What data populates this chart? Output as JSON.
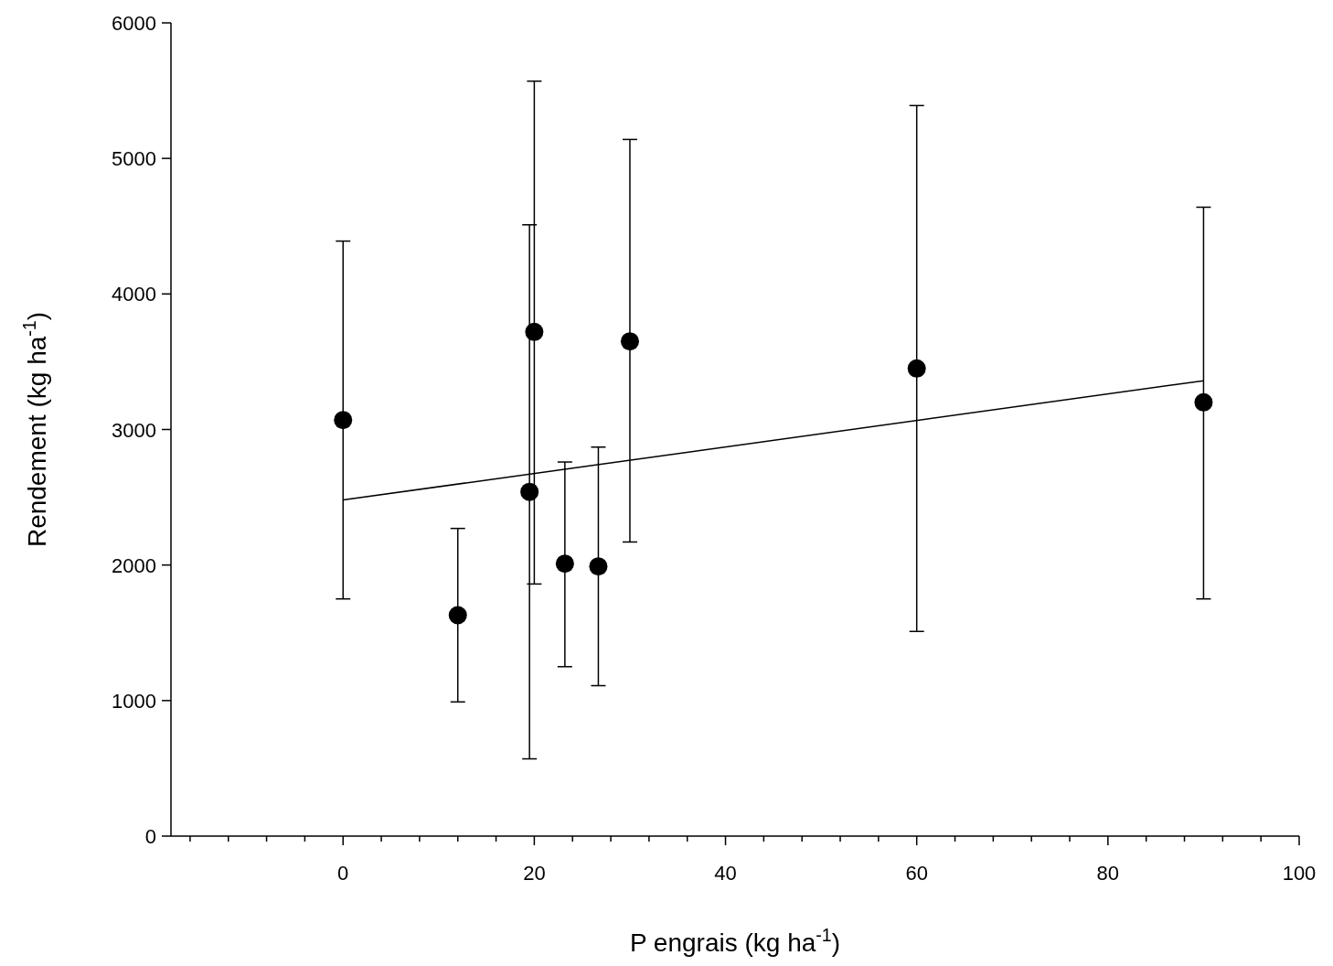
{
  "chart_data": {
    "type": "scatter",
    "xlabel": "P engrais (kg ha$^{-1}$)",
    "ylabel": "Rendement (kg ha$^{-1}$)",
    "xlim": [
      -18,
      100
    ],
    "ylim": [
      0,
      6000
    ],
    "xticks": [
      {
        "value": -16,
        "label": null
      },
      {
        "value": -12,
        "label": null
      },
      {
        "value": -8,
        "label": null
      },
      {
        "value": -4,
        "label": null
      },
      0,
      {
        "value": 4,
        "label": null
      },
      {
        "value": 8,
        "label": null
      },
      {
        "value": 12,
        "label": null
      },
      {
        "value": 16,
        "label": null
      },
      20,
      {
        "value": 24,
        "label": null
      },
      {
        "value": 28,
        "label": null
      },
      {
        "value": 32,
        "label": null
      },
      {
        "value": 36,
        "label": null
      },
      40,
      {
        "value": 44,
        "label": null
      },
      {
        "value": 48,
        "label": null
      },
      {
        "value": 52,
        "label": null
      },
      {
        "value": 56,
        "label": null
      },
      60,
      {
        "value": 64,
        "label": null
      },
      {
        "value": 68,
        "label": null
      },
      {
        "value": 72,
        "label": null
      },
      {
        "value": 76,
        "label": null
      },
      80,
      {
        "value": 84,
        "label": null
      },
      {
        "value": 88,
        "label": null
      },
      {
        "value": 92,
        "label": null
      },
      {
        "value": 96,
        "label": null
      },
      100
    ],
    "yticks": [
      0,
      1000,
      2000,
      3000,
      4000,
      5000,
      6000
    ],
    "grid": false,
    "marker": "circle",
    "series": [
      {
        "color": "#000000",
        "x": [
          0,
          12,
          19.5,
          20,
          23.2,
          26.7,
          30,
          60,
          90
        ],
        "values": [
          3070,
          1630,
          2540,
          3720,
          2010,
          1990,
          3650,
          3450,
          3200
        ],
        "errors": [
          [
            1750,
            4390
          ],
          [
            990,
            2270
          ],
          [
            570,
            4510
          ],
          [
            1860,
            5570
          ],
          [
            1250,
            2760
          ],
          [
            1110,
            2870
          ],
          [
            2170,
            5140
          ],
          [
            1510,
            5390
          ],
          [
            1750,
            4640
          ]
        ]
      },
      {
        "type": "line",
        "color": "#000000",
        "x": [
          0,
          90
        ],
        "values": [
          2480,
          3360
        ],
        "marker": "none",
        "line_style": "solid"
      }
    ]
  }
}
